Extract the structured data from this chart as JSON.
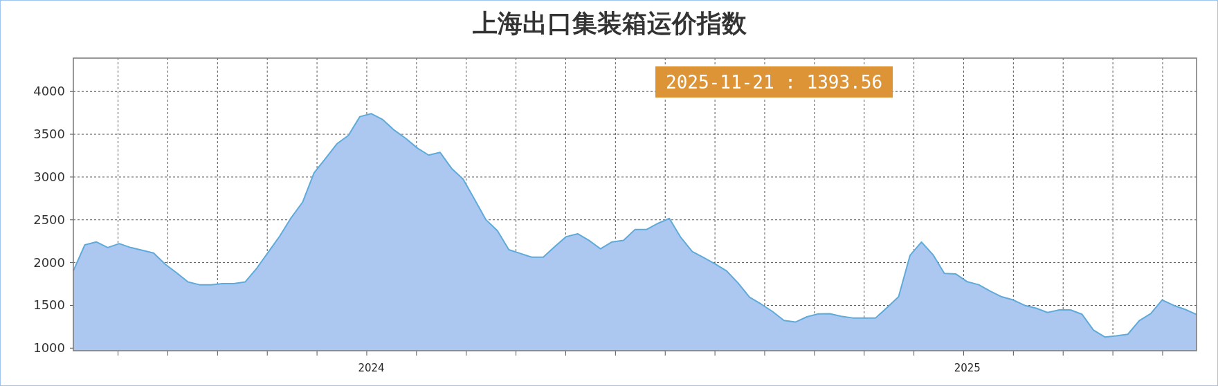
{
  "chart_data": {
    "type": "area",
    "title": "上海出口集装箱运价指数",
    "categories": [
      null,
      null,
      null,
      null,
      null,
      null,
      null,
      null,
      null,
      null,
      null,
      null,
      null,
      null,
      null,
      null,
      null,
      null,
      null,
      null,
      null,
      null,
      null,
      null,
      null,
      null,
      "2024",
      null,
      null,
      null,
      null,
      null,
      null,
      null,
      null,
      null,
      null,
      null,
      null,
      null,
      null,
      null,
      null,
      null,
      null,
      null,
      null,
      null,
      null,
      null,
      null,
      null,
      null,
      null,
      null,
      null,
      null,
      null,
      null,
      null,
      null,
      null,
      null,
      null,
      null,
      null,
      null,
      null,
      null,
      null,
      null,
      null,
      null,
      null,
      null,
      null,
      null,
      null,
      "2025",
      null,
      null,
      null,
      null,
      null,
      null,
      null,
      null,
      null,
      null,
      null,
      null,
      null,
      null,
      null,
      null,
      null,
      null,
      null,
      null
    ],
    "series": [
      {
        "color": "#adc8f0",
        "values": [
          1905,
          2207,
          2242,
          2176,
          2222,
          2176,
          2144,
          2112,
          1983,
          1882,
          1775,
          1741,
          1741,
          1755,
          1755,
          1775,
          1934,
          2121,
          2308,
          2524,
          2706,
          3049,
          3216,
          3389,
          3487,
          3706,
          3741,
          3671,
          3548,
          3452,
          3340,
          3256,
          3288,
          3101,
          2977,
          2741,
          2501,
          2372,
          2150,
          2107,
          2063,
          2063,
          2187,
          2303,
          2337,
          2259,
          2161,
          2242,
          2259,
          2386,
          2386,
          2458,
          2516,
          2294,
          2130,
          2058,
          1983,
          1902,
          1761,
          1596,
          1516,
          1429,
          1323,
          1305,
          1366,
          1400,
          1403,
          1373,
          1353,
          1353,
          1353,
          1476,
          1600,
          2084,
          2240,
          2093,
          1873,
          1867,
          1776,
          1741,
          1667,
          1600,
          1564,
          1500,
          1467,
          1417,
          1447,
          1447,
          1397,
          1212,
          1130,
          1144,
          1162,
          1321,
          1403,
          1564,
          1500,
          1453,
          1393.56
        ]
      }
    ],
    "ylim": [
      970,
      4390
    ],
    "yticks": [
      1000,
      1500,
      2000,
      2500,
      3000,
      3500,
      4000
    ],
    "grid": true,
    "annotations": [
      "2025-11-21 : 1393.56"
    ]
  }
}
